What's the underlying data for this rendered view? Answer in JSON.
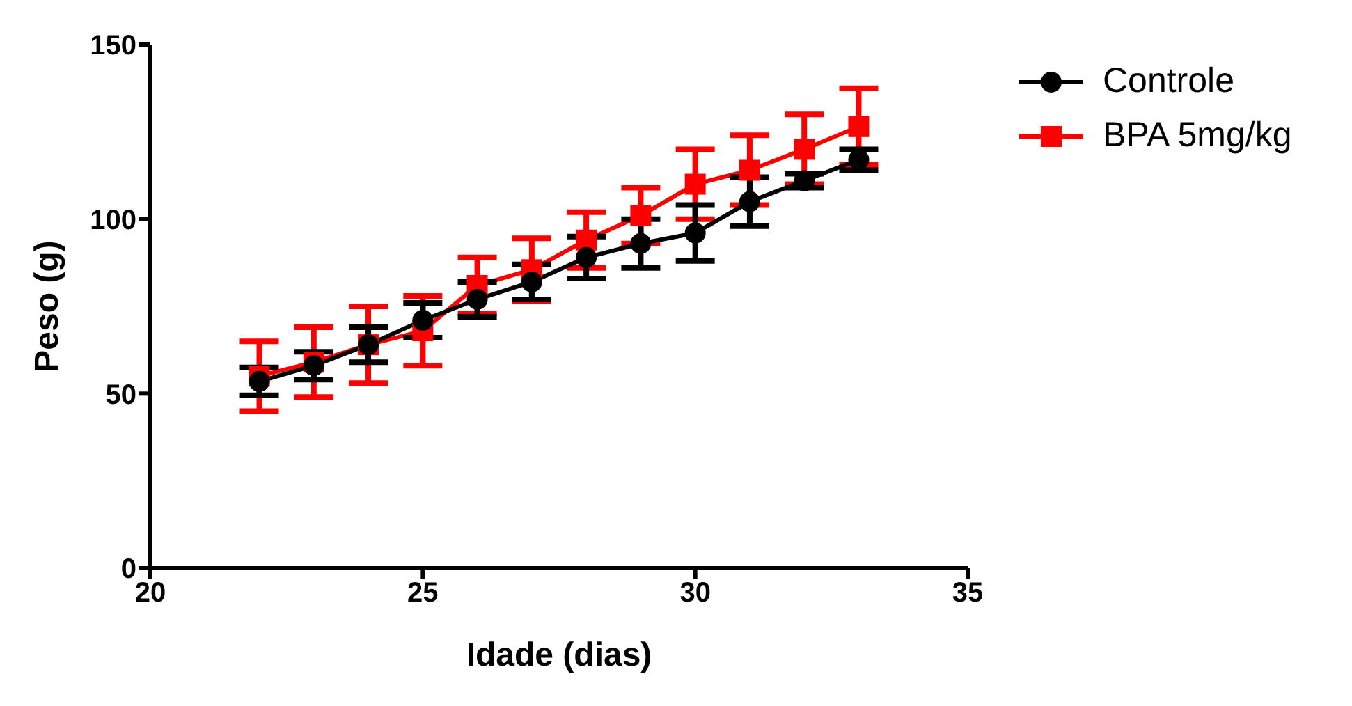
{
  "chart_data": {
    "type": "line",
    "xlabel": "Idade (dias)",
    "ylabel": "Peso (g)",
    "x": [
      22,
      23,
      24,
      25,
      26,
      27,
      28,
      29,
      30,
      31,
      32,
      33
    ],
    "xlim": [
      20,
      35
    ],
    "xticks": [
      20,
      25,
      30,
      35
    ],
    "ylim": [
      0,
      150
    ],
    "yticks": [
      0,
      50,
      100,
      150
    ],
    "grid": false,
    "legend": "top right",
    "series": [
      {
        "name": "Controle",
        "color": "#000000",
        "marker": "circle",
        "values": [
          53.5,
          58,
          64,
          71,
          77,
          82,
          89,
          93,
          96,
          105,
          111,
          117
        ],
        "errors": [
          4,
          4,
          5,
          5,
          5,
          5,
          6,
          7,
          8,
          7,
          2,
          3
        ]
      },
      {
        "name": "BPA 5mg/kg",
        "color": "#ff0000",
        "marker": "square",
        "values": [
          55,
          59,
          64,
          68,
          81,
          85.5,
          94,
          101,
          110,
          114,
          120,
          126.5
        ],
        "errors": [
          10,
          10,
          11,
          10,
          8,
          9,
          8,
          8,
          10,
          10,
          10,
          11
        ]
      }
    ]
  }
}
